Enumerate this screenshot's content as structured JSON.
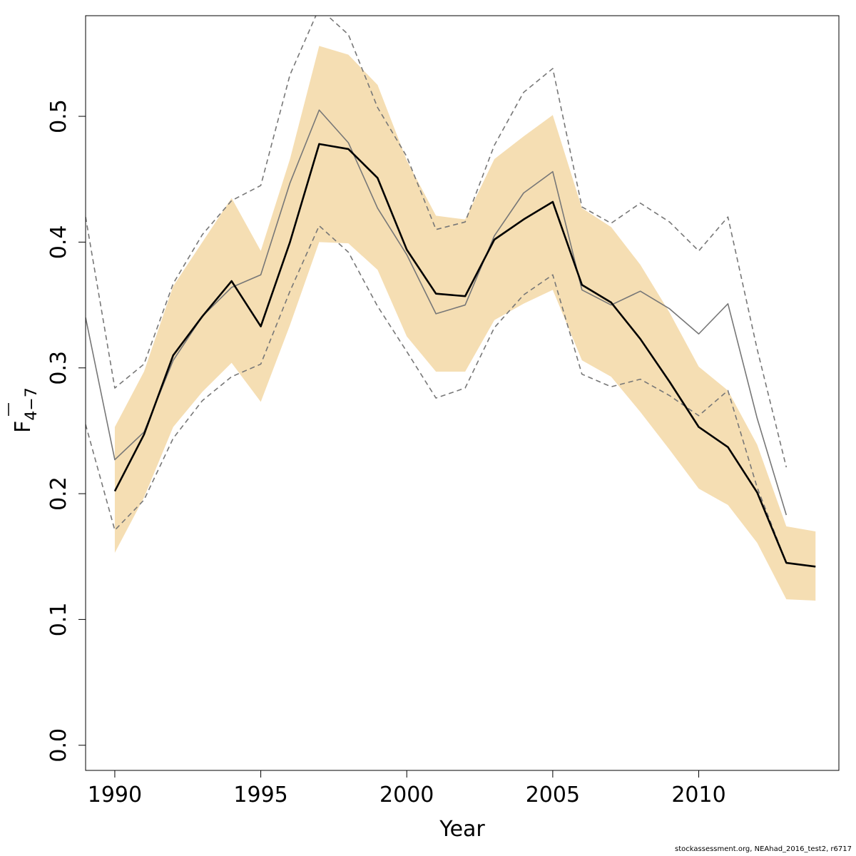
{
  "chart_data": {
    "type": "line",
    "xlabel": "Year",
    "ylabel": {
      "main": "F",
      "sub": "4−7"
    },
    "xlim": [
      1989,
      2014.8
    ],
    "ylim": [
      -0.02,
      0.58
    ],
    "xticks": [
      1990,
      1995,
      2000,
      2005,
      2010
    ],
    "yticks": [
      0.0,
      0.1,
      0.2,
      0.3,
      0.4,
      0.5
    ],
    "ytick_labels": [
      "0.0",
      "0.1",
      "0.2",
      "0.3",
      "0.4",
      "0.5"
    ],
    "band": {
      "color": "#f5deb3",
      "x": [
        1990,
        1991,
        1992,
        1993,
        1994,
        1995,
        1996,
        1997,
        1998,
        1999,
        2000,
        2001,
        2002,
        2003,
        2004,
        2005,
        2006,
        2007,
        2008,
        2009,
        2010,
        2011,
        2012,
        2013,
        2014
      ],
      "lower": [
        0.153,
        0.197,
        0.253,
        0.281,
        0.304,
        0.273,
        0.334,
        0.4,
        0.399,
        0.378,
        0.325,
        0.297,
        0.297,
        0.338,
        0.351,
        0.362,
        0.306,
        0.293,
        0.265,
        0.235,
        0.204,
        0.191,
        0.161,
        0.116,
        0.115
      ],
      "upper": [
        0.253,
        0.297,
        0.365,
        0.4,
        0.435,
        0.393,
        0.466,
        0.556,
        0.549,
        0.525,
        0.465,
        0.421,
        0.418,
        0.466,
        0.484,
        0.501,
        0.427,
        0.412,
        0.382,
        0.344,
        0.301,
        0.282,
        0.239,
        0.174,
        0.17
      ]
    },
    "series": [
      {
        "role": "estimate",
        "color": "#000000",
        "x": [
          1990,
          1991,
          1992,
          1993,
          1994,
          1995,
          1996,
          1997,
          1998,
          1999,
          2000,
          2001,
          2002,
          2003,
          2004,
          2005,
          2006,
          2007,
          2008,
          2009,
          2010,
          2011,
          2012,
          2013,
          2014
        ],
        "values": [
          0.202,
          0.247,
          0.31,
          0.341,
          0.369,
          0.333,
          0.4,
          0.478,
          0.474,
          0.451,
          0.394,
          0.359,
          0.357,
          0.402,
          0.418,
          0.432,
          0.366,
          0.352,
          0.323,
          0.289,
          0.253,
          0.237,
          0.201,
          0.145,
          0.142
        ]
      },
      {
        "role": "comparison",
        "color": "#777777",
        "x": [
          1989,
          1990,
          1991,
          1992,
          1993,
          1994,
          1995,
          1996,
          1997,
          1998,
          1999,
          2000,
          2001,
          2002,
          2003,
          2004,
          2005,
          2006,
          2007,
          2008,
          2009,
          2010,
          2011,
          2012,
          2013
        ],
        "values": [
          0.34,
          0.227,
          0.249,
          0.306,
          0.341,
          0.364,
          0.374,
          0.447,
          0.505,
          0.479,
          0.427,
          0.39,
          0.343,
          0.35,
          0.405,
          0.439,
          0.456,
          0.362,
          0.35,
          0.361,
          0.347,
          0.327,
          0.351,
          0.26,
          0.183
        ]
      },
      {
        "role": "comparison-upper",
        "color": "#777777",
        "dashed": true,
        "x": [
          1989,
          1990,
          1991,
          1992,
          1993,
          1994,
          1995,
          1996,
          1997,
          1998,
          1999,
          2000,
          2001,
          2002,
          2003,
          2004,
          2005,
          2006,
          2007,
          2008,
          2009,
          2010,
          2011,
          2012,
          2013
        ],
        "values": [
          0.42,
          0.284,
          0.303,
          0.367,
          0.406,
          0.433,
          0.445,
          0.533,
          0.586,
          0.565,
          0.507,
          0.468,
          0.41,
          0.416,
          0.477,
          0.519,
          0.538,
          0.428,
          0.415,
          0.431,
          0.416,
          0.393,
          0.42,
          0.315,
          0.221
        ]
      },
      {
        "role": "comparison-lower",
        "color": "#777777",
        "dashed": true,
        "x": [
          1989,
          1990,
          1991,
          1992,
          1993,
          1994,
          1995,
          1996,
          1997,
          1998,
          1999,
          2000,
          2001,
          2002,
          2003,
          2004,
          2005,
          2006,
          2007,
          2008,
          2009,
          2010,
          2011,
          2012,
          2013
        ],
        "values": [
          0.255,
          0.171,
          0.195,
          0.244,
          0.274,
          0.293,
          0.303,
          0.361,
          0.413,
          0.392,
          0.349,
          0.313,
          0.276,
          0.284,
          0.332,
          0.358,
          0.374,
          0.295,
          0.285,
          0.291,
          0.278,
          0.262,
          0.282,
          0.205,
          0.145
        ]
      }
    ]
  },
  "footer": "stockassessment.org, NEAhad_2016_test2, r6717"
}
